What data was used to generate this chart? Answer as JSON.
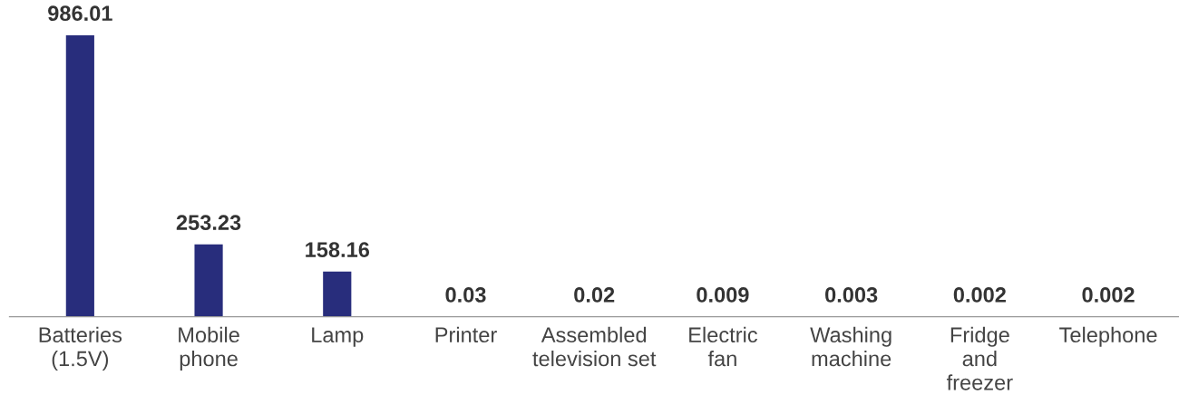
{
  "chart_data": {
    "type": "bar",
    "categories": [
      "Batteries\n(1.5V)",
      "Mobile\nphone",
      "Lamp",
      "Printer",
      "Assembled\ntelevision set",
      "Electric\nfan",
      "Washing\nmachine",
      "Fridge\nand\nfreezer",
      "Telephone"
    ],
    "values": [
      986.01,
      253.23,
      158.16,
      0.03,
      0.02,
      0.009,
      0.003,
      0.002,
      0.002
    ],
    "color": "#282d7c",
    "data_labels": true,
    "grid": false,
    "legend": false
  }
}
